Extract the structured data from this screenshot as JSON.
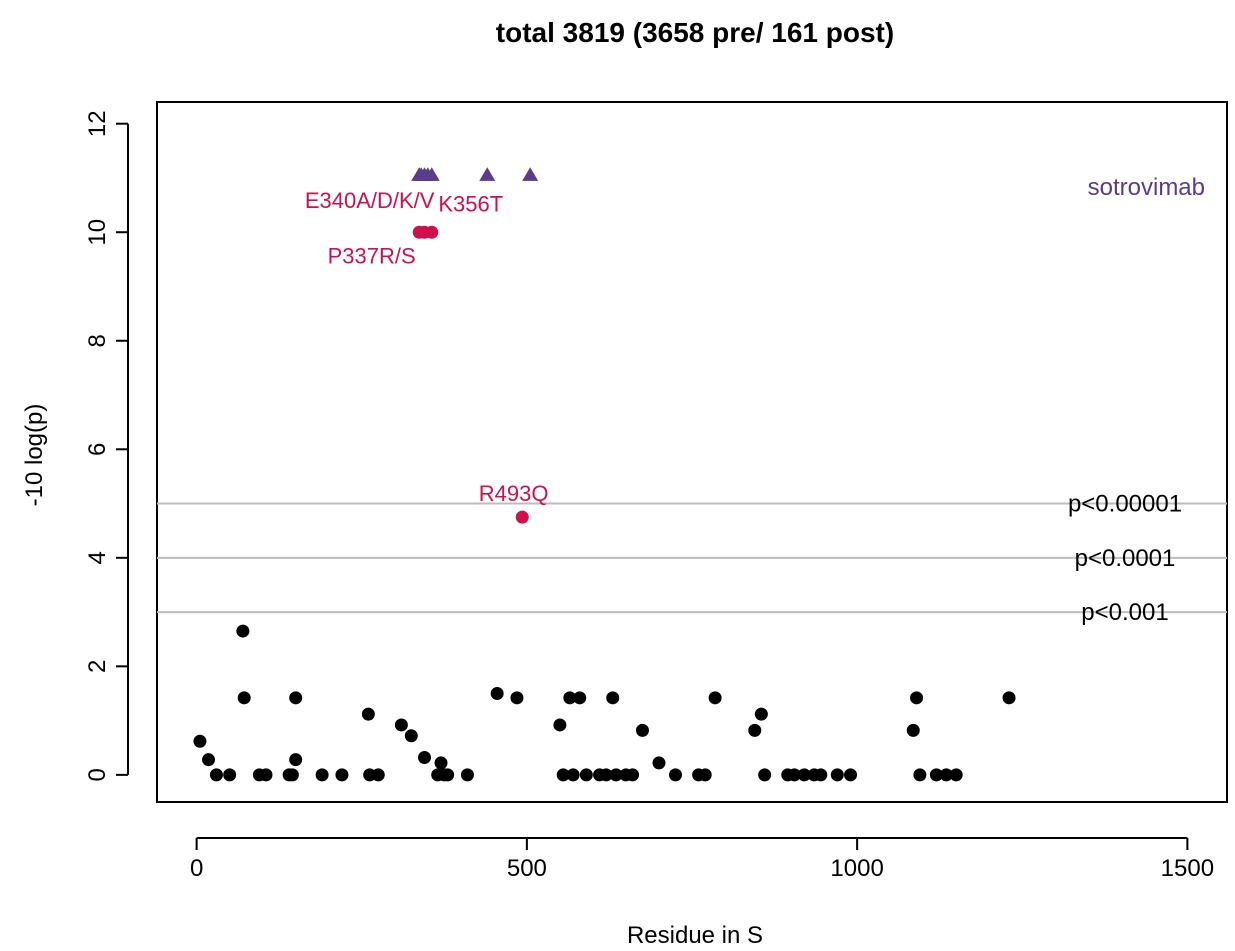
{
  "chart_data": {
    "type": "scatter",
    "title": "total 3819 (3658 pre/ 161 post)",
    "xlabel": "Residue in S",
    "ylabel": "-10 log(p)",
    "xlim": [
      -60,
      1560
    ],
    "ylim": [
      -0.5,
      12.4
    ],
    "xticks": [
      "0",
      "500",
      "1000",
      "1500"
    ],
    "yticks": [
      "0",
      "2",
      "4",
      "6",
      "8",
      "10",
      "12"
    ],
    "grid": false,
    "colors": {
      "background_points": "#000000",
      "significant": "#d0104c",
      "antibody": "#5b3b8c",
      "threshold_lines": "#bdbdbd"
    },
    "thresholds": [
      {
        "y": 5,
        "label": "p<0.00001"
      },
      {
        "y": 4,
        "label": "p<0.0001"
      },
      {
        "y": 3,
        "label": "p<0.001"
      }
    ],
    "antibody_label": "sotrovimab",
    "series": [
      {
        "role": "background",
        "x": [
          5,
          18,
          30,
          50,
          95,
          105,
          140,
          145,
          150,
          190,
          220,
          260,
          262,
          275,
          310,
          325,
          345,
          365,
          370,
          375,
          380,
          410,
          70,
          72,
          150,
          455,
          485,
          550,
          555,
          565,
          570,
          580,
          590,
          610,
          620,
          630,
          635,
          650,
          660,
          675,
          700,
          725,
          760,
          770,
          785,
          845,
          855,
          860,
          895,
          905,
          920,
          935,
          945,
          970,
          990,
          1085,
          1090,
          1095,
          1120,
          1135,
          1150,
          1230
        ],
        "y": [
          0.62,
          0.28,
          0,
          0,
          0,
          0,
          0,
          0,
          1.42,
          0,
          0,
          1.12,
          0,
          0,
          0.92,
          0.72,
          0.32,
          0,
          0.22,
          0,
          0,
          0,
          2.65,
          1.42,
          0.28,
          1.5,
          1.42,
          0.92,
          0,
          1.42,
          0,
          1.42,
          0,
          0,
          0,
          1.42,
          0,
          0,
          0,
          0.82,
          0.22,
          0,
          0,
          0,
          1.42,
          0.82,
          1.12,
          0,
          0,
          0,
          0,
          0,
          0,
          0,
          0,
          0.82,
          1.42,
          0,
          0,
          0,
          0,
          1.42
        ]
      },
      {
        "role": "significant",
        "x": [
          337,
          345,
          356,
          493
        ],
        "y": [
          10,
          10,
          10,
          4.75
        ]
      },
      {
        "role": "antibody-site",
        "x": [
          337,
          340,
          345,
          350,
          356,
          440,
          505
        ],
        "y": [
          11.05,
          11.05,
          11.05,
          11.05,
          11.05,
          11.05,
          11.05
        ]
      }
    ],
    "annotations": [
      {
        "text": "E340A/D/K/V",
        "x": 262,
        "y": 10.45
      },
      {
        "text": "K356T",
        "x": 415,
        "y": 10.38
      },
      {
        "text": "P337R/S",
        "x": 265,
        "y": 9.42
      },
      {
        "text": "R493Q",
        "x": 480,
        "y": 5.05
      }
    ]
  }
}
